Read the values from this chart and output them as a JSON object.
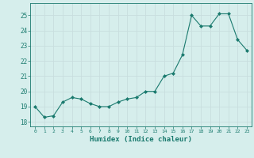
{
  "x": [
    0,
    1,
    2,
    3,
    4,
    5,
    6,
    7,
    8,
    9,
    10,
    11,
    12,
    13,
    14,
    15,
    16,
    17,
    18,
    19,
    20,
    21,
    22,
    23
  ],
  "y": [
    19.0,
    18.3,
    18.4,
    19.3,
    19.6,
    19.5,
    19.2,
    19.0,
    19.0,
    19.3,
    19.5,
    19.6,
    20.0,
    20.0,
    21.0,
    21.2,
    22.4,
    25.0,
    24.3,
    24.3,
    25.1,
    25.1,
    23.4,
    22.7
  ],
  "line_color": "#1a7a6e",
  "marker": "D",
  "marker_size": 2,
  "bg_color": "#d6eeec",
  "grid_color": "#c8dede",
  "xlabel": "Humidex (Indice chaleur)",
  "ylim": [
    17.7,
    25.8
  ],
  "xlim": [
    -0.5,
    23.5
  ],
  "yticks": [
    18,
    19,
    20,
    21,
    22,
    23,
    24,
    25
  ],
  "xticks": [
    0,
    1,
    2,
    3,
    4,
    5,
    6,
    7,
    8,
    9,
    10,
    11,
    12,
    13,
    14,
    15,
    16,
    17,
    18,
    19,
    20,
    21,
    22,
    23
  ],
  "tick_color": "#1a7a6e",
  "label_color": "#1a7a6e"
}
